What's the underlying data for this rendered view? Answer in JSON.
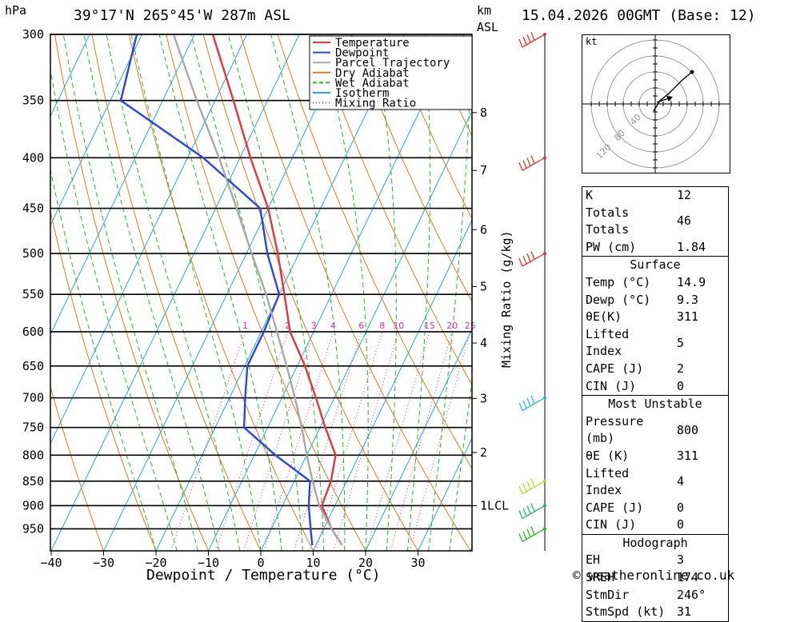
{
  "header": {
    "location": "39°17'N 265°45'W 287m ASL",
    "datetime": "15.04.2026 00GMT (Base: 12)",
    "pressure_unit": "hPa",
    "height_unit_1": "km",
    "height_unit_2": "ASL",
    "copyright": "© weatheronline.co.uk"
  },
  "chart_data": {
    "type": "line",
    "title": "",
    "xlabel": "Dewpoint / Temperature (°C)",
    "ylabel": "hPa",
    "y2label": "Mixing Ratio (g/kg)",
    "xlim": [
      -40,
      40
    ],
    "ylim": [
      1000,
      300
    ],
    "y_scale": "log",
    "x_ticks": [
      -40,
      -30,
      -20,
      -10,
      0,
      10,
      20,
      30
    ],
    "pressure_levels": [
      300,
      350,
      400,
      450,
      500,
      550,
      600,
      650,
      700,
      750,
      800,
      850,
      900,
      950
    ],
    "km_labels": [
      {
        "label": "8",
        "p": 360
      },
      {
        "label": "7",
        "p": 412
      },
      {
        "label": "6",
        "p": 473
      },
      {
        "label": "5",
        "p": 540
      },
      {
        "label": "4",
        "p": 616
      },
      {
        "label": "3",
        "p": 701
      },
      {
        "label": "2",
        "p": 795
      },
      {
        "label": "1LCL",
        "p": 900
      }
    ],
    "mixing_ratio_labels": [
      "1",
      "2",
      "3",
      "4",
      "6",
      "8",
      "10",
      "15",
      "20",
      "25"
    ],
    "legend": {
      "position": "top-right",
      "entries": [
        {
          "name": "Temperature",
          "color": "#e8333a",
          "style": "solid"
        },
        {
          "name": "Dewpoint",
          "color": "#2a44e8",
          "style": "solid"
        },
        {
          "name": "Parcel Trajectory",
          "color": "#a8a8a8",
          "style": "solid"
        },
        {
          "name": "Dry Adiabat",
          "color": "#e07a1f",
          "style": "solid"
        },
        {
          "name": "Wet Adiabat",
          "color": "#22bb22",
          "style": "dashed"
        },
        {
          "name": "Isotherm",
          "color": "#22a9e0",
          "style": "solid"
        },
        {
          "name": "Mixing Ratio",
          "color": "#e0309a",
          "style": "dotted"
        }
      ]
    },
    "series": [
      {
        "name": "Temperature",
        "color": "#e8333a",
        "points": [
          {
            "p": 987,
            "t": 15.0
          },
          {
            "p": 950,
            "t": 11.5
          },
          {
            "p": 900,
            "t": 7.5
          },
          {
            "p": 850,
            "t": 7.0
          },
          {
            "p": 800,
            "t": 5.5
          },
          {
            "p": 750,
            "t": 1.0
          },
          {
            "p": 700,
            "t": -3.5
          },
          {
            "p": 650,
            "t": -8.5
          },
          {
            "p": 600,
            "t": -14.5
          },
          {
            "p": 550,
            "t": -19.0
          },
          {
            "p": 500,
            "t": -24.0
          },
          {
            "p": 450,
            "t": -30.0
          },
          {
            "p": 400,
            "t": -38.0
          },
          {
            "p": 350,
            "t": -46.5
          },
          {
            "p": 300,
            "t": -56.5
          }
        ]
      },
      {
        "name": "Dewpoint",
        "color": "#2a44e8",
        "points": [
          {
            "p": 987,
            "t": 9.3
          },
          {
            "p": 950,
            "t": 7.5
          },
          {
            "p": 900,
            "t": 5.0
          },
          {
            "p": 850,
            "t": 3.0
          },
          {
            "p": 800,
            "t": -6.0
          },
          {
            "p": 750,
            "t": -14.5
          },
          {
            "p": 700,
            "t": -17.0
          },
          {
            "p": 650,
            "t": -19.5
          },
          {
            "p": 600,
            "t": -19.5
          },
          {
            "p": 550,
            "t": -20.0
          },
          {
            "p": 500,
            "t": -26.0
          },
          {
            "p": 450,
            "t": -31.5
          },
          {
            "p": 400,
            "t": -47.0
          },
          {
            "p": 350,
            "t": -68.0
          },
          {
            "p": 300,
            "t": -71.0
          }
        ]
      },
      {
        "name": "Parcel Trajectory",
        "color": "#a8a8a8",
        "points": [
          {
            "p": 987,
            "t": 15.0
          },
          {
            "p": 950,
            "t": 11.5
          },
          {
            "p": 900,
            "t": 7.0
          },
          {
            "p": 850,
            "t": 3.5
          },
          {
            "p": 800,
            "t": 0.0
          },
          {
            "p": 750,
            "t": -3.5
          },
          {
            "p": 700,
            "t": -7.5
          },
          {
            "p": 650,
            "t": -12.0
          },
          {
            "p": 600,
            "t": -17.0
          },
          {
            "p": 550,
            "t": -22.5
          },
          {
            "p": 500,
            "t": -29.0
          },
          {
            "p": 450,
            "t": -36.0
          },
          {
            "p": 400,
            "t": -44.0
          },
          {
            "p": 350,
            "t": -53.5
          },
          {
            "p": 300,
            "t": -64.0
          }
        ]
      }
    ],
    "wind_barbs": [
      {
        "p": 300,
        "color": "#e8333a"
      },
      {
        "p": 400,
        "color": "#e8333a"
      },
      {
        "p": 500,
        "color": "#e8333a"
      },
      {
        "p": 700,
        "color": "#22c5c5"
      },
      {
        "p": 850,
        "color": "#aadd33"
      },
      {
        "p": 900,
        "color": "#22bb66"
      },
      {
        "p": 950,
        "color": "#22bb22"
      }
    ]
  },
  "hodograph": {
    "unit_label": "kt",
    "ring_labels": [
      "40",
      "80",
      "120"
    ]
  },
  "indices": {
    "top": [
      {
        "label": "K",
        "value": "12"
      },
      {
        "label": "Totals Totals",
        "value": "46"
      },
      {
        "label": "PW (cm)",
        "value": "1.84"
      }
    ],
    "surface": {
      "title": "Surface",
      "rows": [
        {
          "label": "Temp (°C)",
          "value": "14.9"
        },
        {
          "label": "Dewp (°C)",
          "value": "9.3"
        },
        {
          "label": "θE(K)",
          "value": "311"
        },
        {
          "label": "Lifted Index",
          "value": "5"
        },
        {
          "label": "CAPE (J)",
          "value": "2"
        },
        {
          "label": "CIN (J)",
          "value": "0"
        }
      ]
    },
    "most_unstable": {
      "title": "Most Unstable",
      "rows": [
        {
          "label": "Pressure (mb)",
          "value": "800"
        },
        {
          "label": "θE (K)",
          "value": "311"
        },
        {
          "label": "Lifted Index",
          "value": "4"
        },
        {
          "label": "CAPE (J)",
          "value": "0"
        },
        {
          "label": "CIN (J)",
          "value": "0"
        }
      ]
    },
    "hodograph": {
      "title": "Hodograph",
      "rows": [
        {
          "label": "EH",
          "value": "3"
        },
        {
          "label": "SREH",
          "value": "174"
        },
        {
          "label": "StmDir",
          "value": "246°"
        },
        {
          "label": "StmSpd (kt)",
          "value": "31"
        }
      ]
    }
  }
}
